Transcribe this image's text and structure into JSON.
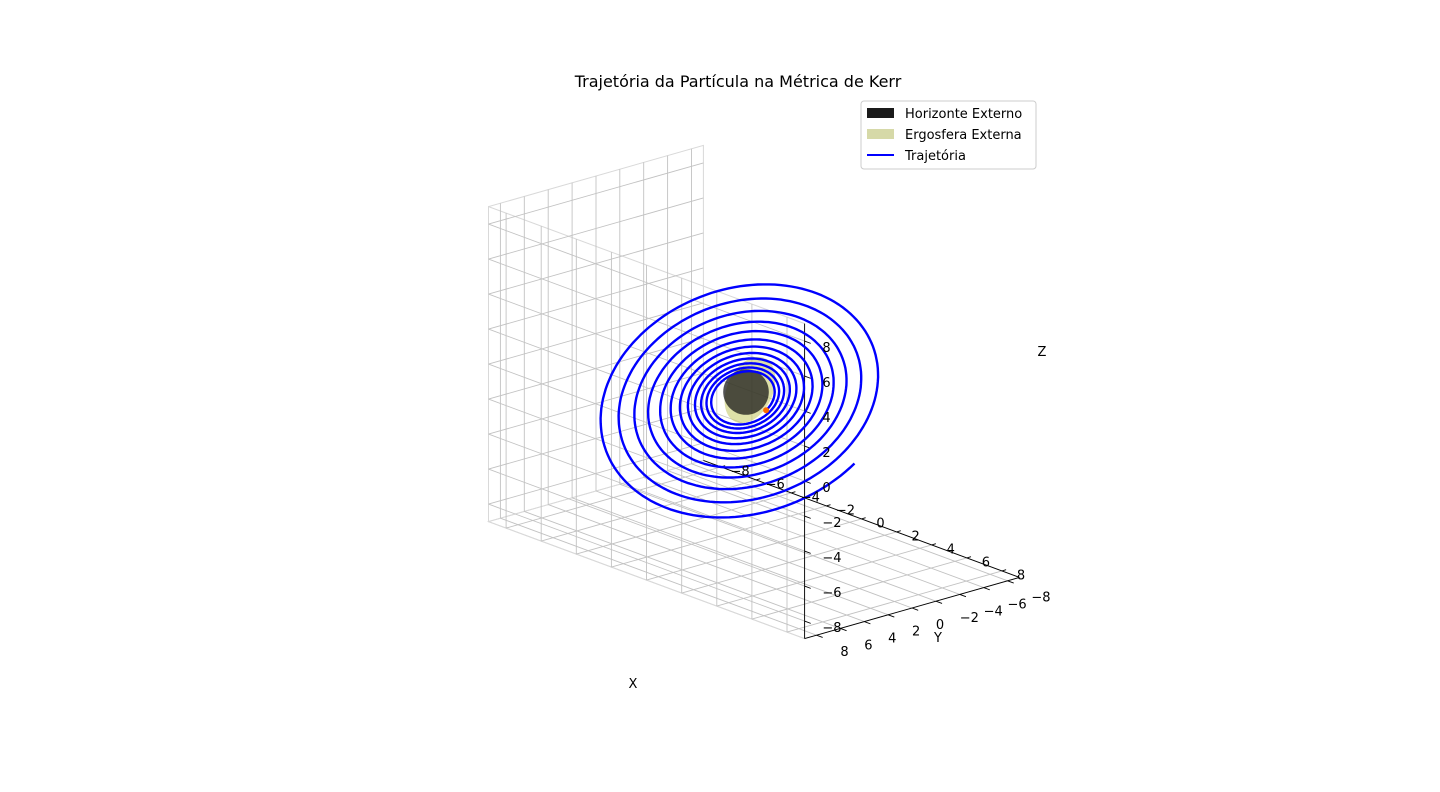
{
  "chart_data": {
    "type": "line",
    "projection": "3d",
    "title": "Trajetória da Partícula na Métrica de Kerr",
    "xlabel": "X",
    "ylabel": "Y",
    "zlabel": "Z",
    "xlim": [
      -9,
      9
    ],
    "ylim": [
      -9,
      9
    ],
    "zlim": [
      -9,
      9
    ],
    "xticks": [
      -8,
      -6,
      -4,
      -2,
      0,
      2,
      4,
      6,
      8
    ],
    "yticks": [
      -8,
      -6,
      -4,
      -2,
      0,
      2,
      4,
      6,
      8
    ],
    "zticks": [
      -8,
      -6,
      -4,
      -2,
      0,
      2,
      4,
      6,
      8
    ],
    "grid": true,
    "legend_position": "top-right",
    "legend": [
      {
        "label": "Horizonte Externo",
        "kind": "patch",
        "color": "#1a1a1a"
      },
      {
        "label": "Ergosfera Externa",
        "kind": "patch",
        "color": "#d6d9a8"
      },
      {
        "label": "Trajetória",
        "kind": "line",
        "color": "#0000ff"
      }
    ],
    "surfaces": [
      {
        "name": "Horizonte Externo",
        "shape": "sphere",
        "center": [
          0,
          0,
          0
        ],
        "radius": 1.3,
        "color": "#1a1a1a"
      },
      {
        "name": "Ergosfera Externa",
        "shape": "oblate-spheroid",
        "center": [
          0,
          0,
          0
        ],
        "equatorial_radius": 2.0,
        "polar_radius": 1.3,
        "color": "#c8cc6e"
      }
    ],
    "series": [
      {
        "name": "Trajetória",
        "color": "#0000ff",
        "parametric": "spiral",
        "r_start": 8.0,
        "r_end": 1.6,
        "turns": 12,
        "tilt_deg": 28,
        "start_angle_deg": -35
      }
    ]
  }
}
